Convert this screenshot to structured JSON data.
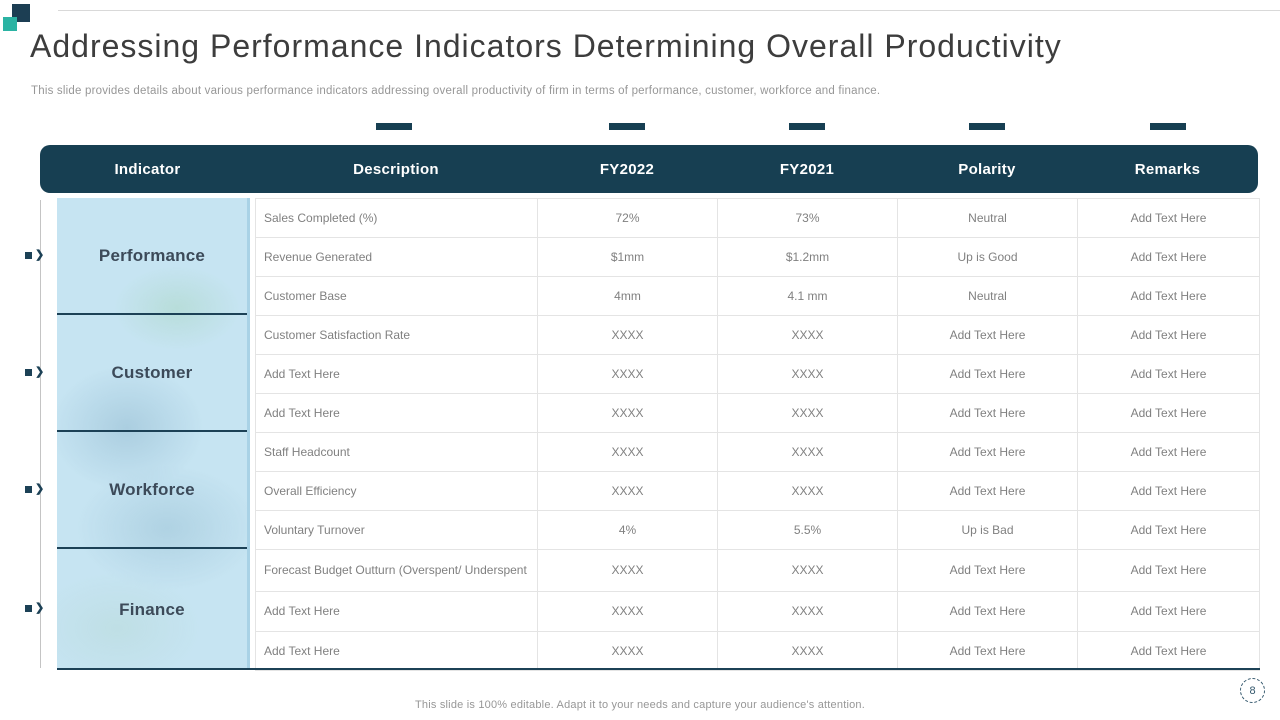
{
  "slide": {
    "title": "Addressing Performance Indicators Determining Overall Productivity",
    "subtitle": "This slide provides details about various performance indicators addressing overall productivity of firm in terms of performance, customer, workforce and finance.",
    "footer": "This slide is 100% editable. Adapt it to your needs and capture your audience's attention.",
    "page_number": "8"
  },
  "icons": {
    "bullet_arrow": "❯",
    "logo": "two-overlapping-squares",
    "page_badge": "ticked-circle"
  },
  "table": {
    "headers": [
      "Indicator",
      "Description",
      "FY2022",
      "FY2021",
      "Polarity",
      "Remarks"
    ],
    "groups": [
      {
        "label": "Performance",
        "rows": [
          {
            "description": "Sales Completed (%)",
            "fy2022": "72%",
            "fy2021": "73%",
            "polarity": "Neutral",
            "remarks": "Add Text Here"
          },
          {
            "description": "Revenue Generated",
            "fy2022": "$1mm",
            "fy2021": "$1.2mm",
            "polarity": "Up is Good",
            "remarks": "Add Text Here"
          },
          {
            "description": "Customer Base",
            "fy2022": "4mm",
            "fy2021": "4.1 mm",
            "polarity": "Neutral",
            "remarks": "Add Text Here"
          }
        ]
      },
      {
        "label": "Customer",
        "rows": [
          {
            "description": "Customer  Satisfaction Rate",
            "fy2022": "XXXX",
            "fy2021": "XXXX",
            "polarity": "Add Text Here",
            "remarks": "Add Text Here"
          },
          {
            "description": "Add Text Here",
            "fy2022": "XXXX",
            "fy2021": "XXXX",
            "polarity": "Add Text Here",
            "remarks": "Add Text Here"
          },
          {
            "description": "Add Text Here",
            "fy2022": "XXXX",
            "fy2021": "XXXX",
            "polarity": "Add Text Here",
            "remarks": "Add Text Here"
          }
        ]
      },
      {
        "label": "Workforce",
        "rows": [
          {
            "description": "Staff Headcount",
            "fy2022": "XXXX",
            "fy2021": "XXXX",
            "polarity": "Add Text Here",
            "remarks": "Add Text Here"
          },
          {
            "description": "Overall Efficiency",
            "fy2022": "XXXX",
            "fy2021": "XXXX",
            "polarity": "Add Text Here",
            "remarks": "Add Text Here"
          },
          {
            "description": "Voluntary Turnover",
            "fy2022": "4%",
            "fy2021": "5.5%",
            "polarity": "Up is Bad",
            "remarks": "Add Text Here"
          }
        ]
      },
      {
        "label": "Finance",
        "rows": [
          {
            "description": "Forecast Budget Outturn (Overspent/ Underspent",
            "fy2022": "XXXX",
            "fy2021": "XXXX",
            "polarity": "Add Text Here",
            "remarks": "Add Text Here"
          },
          {
            "description": "Add  Text Here",
            "fy2022": "XXXX",
            "fy2021": "XXXX",
            "polarity": "Add Text Here",
            "remarks": "Add Text Here"
          },
          {
            "description": "Add Text Here",
            "fy2022": "XXXX",
            "fy2021": "XXXX",
            "polarity": "Add Text Here",
            "remarks": "Add Text Here"
          }
        ]
      }
    ]
  },
  "colors": {
    "header_bg": "#173f52",
    "dark_line": "#1c4156",
    "logo_dark": "#1c3e53",
    "accent_square": "#2bb3a3",
    "group_bg": "#c6e4f2",
    "group_text": "#3c4a59",
    "cell_text": "#808080",
    "grid_border": "#e4e4e4",
    "title_text": "#3d3d3d",
    "muted_text": "#979797",
    "badge_color": "#33576c"
  }
}
